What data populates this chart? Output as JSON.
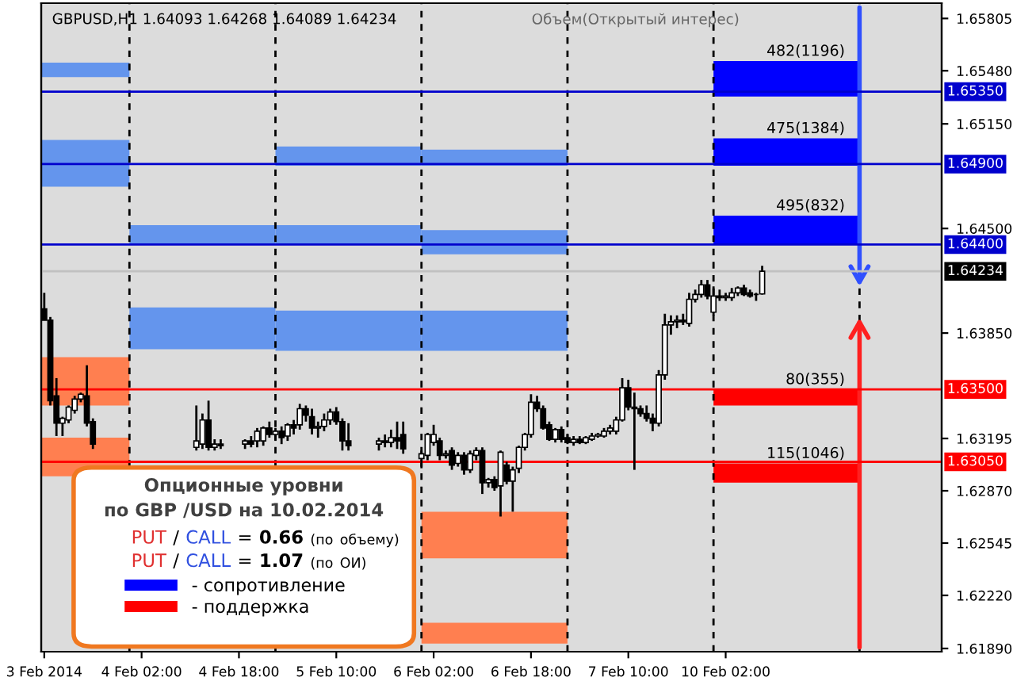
{
  "chart_data": [
    {
      "type": "candlestick",
      "title": "GBPUSD,H1 1.64093 1.64268 1.64089 1.64234",
      "subtitle": "Объем(Открытый интерес)",
      "categories": [
        "3 Feb 2014",
        null,
        null,
        null,
        null,
        null,
        null,
        null,
        null,
        null,
        null,
        null,
        null,
        null,
        null,
        null,
        "4 Feb 02:00",
        null,
        null,
        null,
        null,
        null,
        null,
        null,
        null,
        null,
        null,
        null,
        null,
        null,
        null,
        null,
        "4 Feb 18:00",
        null,
        null,
        null,
        null,
        null,
        null,
        null,
        null,
        null,
        null,
        null,
        null,
        null,
        null,
        null,
        "5 Feb 10:00",
        null,
        null,
        null,
        null,
        null,
        null,
        null,
        null,
        null,
        null,
        null,
        null,
        null,
        null,
        null,
        "6 Feb 02:00",
        null,
        null,
        null,
        null,
        null,
        null,
        null,
        null,
        null,
        null,
        null,
        null,
        null,
        null,
        null,
        "6 Feb 18:00",
        null,
        null,
        null,
        null,
        null,
        null,
        null,
        null,
        null,
        null,
        null,
        null,
        null,
        null,
        null,
        "7 Feb 10:00",
        null,
        null,
        null,
        null,
        null,
        null,
        null,
        null,
        null,
        null,
        null,
        null,
        null,
        null,
        null,
        "10 Feb 02:00",
        null,
        null,
        null,
        null,
        null,
        null,
        null,
        null,
        null,
        null,
        null,
        null,
        null,
        null,
        null,
        null,
        null,
        null,
        null,
        null,
        null,
        null,
        null,
        null,
        null,
        null,
        null,
        null,
        null,
        null,
        null,
        null,
        null,
        null,
        null
      ],
      "ohlc": [
        [
          1.64,
          1.641,
          1.6393,
          1.6393
        ],
        [
          1.6393,
          1.6395,
          1.634,
          1.6343
        ],
        [
          1.6346,
          1.6357,
          1.6321,
          1.6329
        ],
        [
          1.6329,
          1.6333,
          1.6321,
          1.6332
        ],
        [
          1.6331,
          1.634,
          1.6329,
          1.6339
        ],
        [
          1.6337,
          1.6346,
          1.6335,
          1.6344
        ],
        [
          1.6344,
          1.6348,
          1.6342,
          1.6347
        ],
        [
          1.6346,
          1.6365,
          1.6327,
          1.6329
        ],
        [
          1.633,
          1.6332,
          1.6313,
          1.6316
        ],
        null,
        null,
        null,
        null,
        null,
        null,
        null,
        null,
        null,
        null,
        null,
        null,
        null,
        null,
        null,
        null,
        [
          1.6314,
          1.634,
          1.6312,
          1.6318
        ],
        [
          1.6316,
          1.6335,
          1.6313,
          1.6331
        ],
        [
          1.6331,
          1.6343,
          1.6312,
          1.6314
        ],
        [
          1.6314,
          1.6319,
          1.6312,
          1.6316
        ],
        [
          1.6316,
          1.6319,
          1.6313,
          1.6315
        ],
        null,
        null,
        null,
        [
          1.6316,
          1.6319,
          1.6313,
          1.6318
        ],
        [
          1.6318,
          1.6321,
          1.6314,
          1.6316
        ],
        [
          1.6318,
          1.6326,
          1.6314,
          1.6324
        ],
        [
          1.6318,
          1.6327,
          1.6315,
          1.6326
        ],
        [
          1.6326,
          1.633,
          1.632,
          1.6322
        ],
        [
          1.6322,
          1.6326,
          1.6318,
          1.6324
        ],
        [
          1.6324,
          1.6327,
          1.6316,
          1.632
        ],
        [
          1.6321,
          1.6329,
          1.6318,
          1.6328
        ],
        [
          1.6328,
          1.6331,
          1.6322,
          1.6326
        ],
        [
          1.6328,
          1.6341,
          1.6325,
          1.6338
        ],
        [
          1.6338,
          1.634,
          1.633,
          1.6334
        ],
        [
          1.6333,
          1.6338,
          1.6322,
          1.6326
        ],
        [
          1.6326,
          1.633,
          1.632,
          1.6327
        ],
        [
          1.6327,
          1.6335,
          1.6324,
          1.6331
        ],
        [
          1.6331,
          1.6338,
          1.6328,
          1.6336
        ],
        [
          1.6336,
          1.6339,
          1.6328,
          1.633
        ],
        [
          1.633,
          1.6332,
          1.6312,
          1.6318
        ],
        [
          1.6318,
          1.6329,
          1.6312,
          1.6315
        ],
        null,
        null,
        null,
        null,
        [
          1.6316,
          1.632,
          1.6312,
          1.6318
        ],
        [
          1.6318,
          1.6322,
          1.6314,
          1.6317
        ],
        [
          1.6317,
          1.6325,
          1.6314,
          1.632
        ],
        [
          1.632,
          1.633,
          1.6313,
          1.6318
        ],
        [
          1.6322,
          1.633,
          1.631,
          1.6313
        ],
        null,
        null,
        [
          1.6307,
          1.6312,
          1.6301,
          1.631
        ],
        [
          1.6309,
          1.6323,
          1.6306,
          1.6322
        ],
        [
          1.6317,
          1.6328,
          1.6315,
          1.6322
        ],
        [
          1.6318,
          1.632,
          1.6306,
          1.6309
        ],
        [
          1.6309,
          1.6312,
          1.6307,
          1.631
        ],
        [
          1.6312,
          1.6314,
          1.63,
          1.6303
        ],
        [
          1.6304,
          1.6311,
          1.6302,
          1.6309
        ],
        [
          1.6309,
          1.6311,
          1.6297,
          1.63
        ],
        [
          1.63,
          1.6312,
          1.6298,
          1.631
        ],
        [
          1.6309,
          1.6314,
          1.6306,
          1.6312
        ],
        [
          1.6312,
          1.6314,
          1.6285,
          1.6292
        ],
        [
          1.6292,
          1.6295,
          1.6289,
          1.6294
        ],
        [
          1.6294,
          1.6296,
          1.6287,
          1.6289
        ],
        [
          1.629,
          1.6312,
          1.6271,
          1.6311
        ],
        [
          1.6303,
          1.6305,
          1.6291,
          1.6293
        ],
        [
          1.6293,
          1.6302,
          1.6274,
          1.63
        ],
        [
          1.6301,
          1.6315,
          1.6298,
          1.6314
        ],
        [
          1.6314,
          1.6323,
          1.6312,
          1.6322
        ],
        [
          1.6322,
          1.6347,
          1.632,
          1.6342
        ],
        [
          1.6342,
          1.6346,
          1.6336,
          1.6338
        ],
        [
          1.6338,
          1.634,
          1.6325,
          1.6326
        ],
        [
          1.6328,
          1.633,
          1.6318,
          1.6319
        ],
        [
          1.6319,
          1.6326,
          1.6317,
          1.6325
        ],
        [
          1.6325,
          1.6327,
          1.6317,
          1.6319
        ],
        [
          1.632,
          1.6322,
          1.6316,
          1.6317
        ],
        [
          1.6317,
          1.6321,
          1.6315,
          1.6319
        ],
        [
          1.6319,
          1.6321,
          1.6316,
          1.6317
        ],
        [
          1.6317,
          1.6321,
          1.6316,
          1.632
        ],
        [
          1.6319,
          1.6323,
          1.6318,
          1.6321
        ],
        [
          1.6321,
          1.6323,
          1.632,
          1.6322
        ],
        [
          1.6321,
          1.6326,
          1.632,
          1.6324
        ],
        [
          1.6324,
          1.6328,
          1.6322,
          1.6326
        ],
        [
          1.6324,
          1.6333,
          1.6322,
          1.6331
        ],
        [
          1.6331,
          1.6357,
          1.633,
          1.6351
        ],
        [
          1.6351,
          1.6356,
          1.6337,
          1.6339
        ],
        [
          1.6339,
          1.6348,
          1.63,
          1.6338
        ],
        [
          1.6338,
          1.634,
          1.6333,
          1.6335
        ],
        [
          1.6335,
          1.634,
          1.633,
          1.6332
        ],
        [
          1.6332,
          1.6335,
          1.6324,
          1.6329
        ],
        [
          1.6329,
          1.6362,
          1.6327,
          1.6359
        ],
        [
          1.6359,
          1.6397,
          1.6356,
          1.639
        ],
        [
          1.639,
          1.6396,
          1.6384,
          1.6392
        ],
        [
          1.6392,
          1.6396,
          1.6388,
          1.6393
        ],
        [
          1.6393,
          1.6397,
          1.639,
          1.6392
        ],
        [
          1.6391,
          1.641,
          1.6389,
          1.6406
        ],
        [
          1.6406,
          1.6412,
          1.6404,
          1.6409
        ],
        [
          1.6409,
          1.6418,
          1.6407,
          1.6415
        ],
        [
          1.6415,
          1.6418,
          1.6406,
          1.6408
        ],
        [
          1.6398,
          1.6414,
          1.6396,
          1.6408
        ],
        [
          1.6408,
          1.6412,
          1.6405,
          1.6407
        ],
        [
          1.6407,
          1.641,
          1.6405,
          1.6408
        ],
        [
          1.6407,
          1.6413,
          1.6405,
          1.641
        ],
        [
          1.641,
          1.6414,
          1.6408,
          1.6413
        ],
        [
          1.6413,
          1.6415,
          1.6408,
          1.6409
        ],
        [
          1.641,
          1.6412,
          1.6407,
          1.6408
        ],
        [
          1.6409,
          1.641,
          1.6405,
          1.6409
        ],
        [
          1.64093,
          1.64268,
          1.64089,
          1.64234
        ],
        null,
        null,
        null,
        null,
        null,
        null,
        null,
        null,
        null,
        null,
        null,
        null,
        null,
        null,
        null,
        null,
        null,
        null,
        null,
        null,
        null,
        null,
        null,
        null,
        null,
        null,
        null,
        null,
        null
      ],
      "ylim": [
        1.6187,
        1.659
      ],
      "yticks": [
        1.65805,
        {
          "value": 1.6548,
          "label": "1.65480"
        },
        {
          "value": 1.6515,
          "label": "1.65150"
        },
        {
          "value": 1.645,
          "label": "1.64500"
        },
        {
          "value": 1.6385,
          "label": "1.63850"
        },
        1.63195,
        {
          "value": 1.6287,
          "label": "1.62870"
        },
        1.62545,
        {
          "value": 1.6222,
          "label": "1.62220"
        },
        {
          "value": 1.6189,
          "label": "1.61890"
        }
      ],
      "ref_lines": [
        {
          "axis": "y",
          "value": 1.6535,
          "label": "1.65350",
          "color": "#0000cd"
        },
        {
          "axis": "y",
          "value": 1.649,
          "label": "1.64900",
          "color": "#0000cd"
        },
        {
          "axis": "y",
          "value": 1.644,
          "label": "1.64400",
          "color": "#0000cd"
        },
        {
          "axis": "y",
          "value": 1.64234,
          "label": "1.64234",
          "color": "#c0c0c0"
        },
        {
          "axis": "y",
          "value": 1.635,
          "label": "1.63500",
          "color": "#ff0000"
        },
        {
          "axis": "y",
          "value": 1.6305,
          "label": "1.63050",
          "color": "#ff0000"
        }
      ],
      "annotations": [
        "Опционные уровни",
        "по GBP /USD на 10.02.2014",
        "PUT / CALL = 0.66 (по объему)",
        "PUT / CALL = 1.07 (по ОИ)"
      ]
    },
    {
      "type": "bar",
      "categories": [
        null,
        null,
        null,
        null,
        null,
        null,
        null
      ],
      "series": [
        {
          "color": "#6495ed",
          "base": [
            1.6544,
            1.644,
            1.6489,
            1.6489,
            null,
            null,
            null
          ],
          "values": [
            0.0009,
            0.0012,
            0.0012,
            0.001,
            null,
            null,
            null
          ]
        },
        {
          "color": "#6495ed",
          "base": [
            1.6476,
            1.6375,
            1.644,
            1.6434,
            null,
            null,
            null
          ],
          "values": [
            0.0029,
            0.0026,
            0.0012,
            0.0015,
            null,
            null,
            null
          ]
        },
        {
          "color": "#6495ed",
          "base": [
            null,
            null,
            1.6374,
            1.6374,
            null,
            null,
            null
          ],
          "values": [
            null,
            null,
            0.0025,
            0.0025,
            null,
            null,
            null
          ]
        },
        {
          "color": "#ff7f50",
          "base": [
            1.634,
            null,
            null,
            1.6245,
            null,
            null,
            null
          ],
          "values": [
            0.003,
            null,
            null,
            0.0029,
            null,
            null,
            null
          ]
        },
        {
          "color": "#ff7f50",
          "base": [
            1.6296,
            null,
            null,
            1.6192,
            null,
            null,
            null
          ],
          "values": [
            0.0024,
            null,
            null,
            0.0013,
            null,
            null,
            null
          ]
        },
        {
          "name": "- сопротивление",
          "color": "#0000ff",
          "base": [
            null,
            null,
            null,
            null,
            null,
            1.6532,
            null
          ],
          "values": [
            null,
            null,
            null,
            null,
            null,
            0.0022,
            null
          ]
        },
        {
          "color": "#0000ff",
          "base": [
            null,
            null,
            null,
            null,
            null,
            1.6489,
            null
          ],
          "values": [
            null,
            null,
            null,
            null,
            null,
            0.0017,
            null
          ]
        },
        {
          "color": "#0000ff",
          "base": [
            null,
            null,
            null,
            null,
            null,
            1.644,
            null
          ],
          "values": [
            null,
            null,
            null,
            null,
            null,
            0.0018,
            null
          ]
        },
        {
          "name": "- поддержка",
          "color": "#ff0000",
          "base": [
            null,
            null,
            null,
            null,
            null,
            1.634,
            null
          ],
          "values": [
            null,
            null,
            null,
            null,
            null,
            0.001,
            null
          ]
        },
        {
          "color": "#ff0000",
          "base": [
            null,
            null,
            null,
            null,
            null,
            1.6292,
            null
          ],
          "values": [
            null,
            null,
            null,
            null,
            null,
            0.0012,
            null
          ]
        }
      ],
      "ylim": [
        1.6187,
        1.659
      ],
      "tick_labels": false,
      "annotations": [
        {
          "text": "482(1196)",
          "y": 1.6554
        },
        {
          "text": "475(1384)",
          "y": 1.6506
        },
        {
          "text": "495(832)",
          "y": 1.6458
        },
        {
          "text": "80(355)",
          "y": 1.635
        },
        {
          "text": "115(1046)",
          "y": 1.6304
        }
      ],
      "legend": "bottom left"
    }
  ]
}
